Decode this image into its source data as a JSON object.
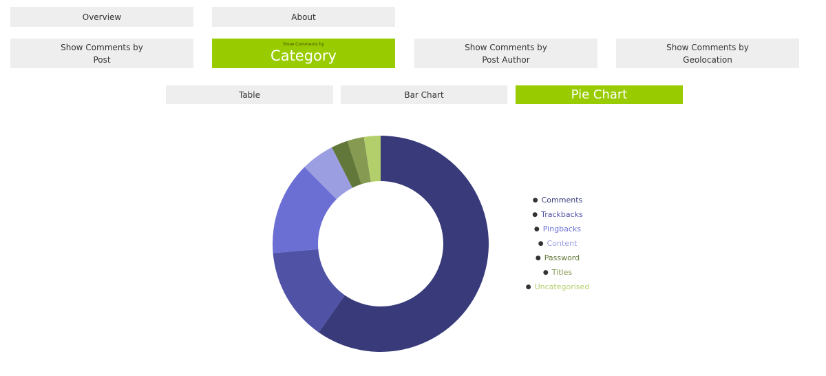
{
  "nav": {
    "overview": "Overview",
    "about": "About"
  },
  "views": {
    "post": {
      "line1": "Show Comments by",
      "line2": "Post"
    },
    "category": {
      "line1": "Show Comments by",
      "line2": "Category"
    },
    "author": {
      "line1": "Show Comments by",
      "line2": "Post Author"
    },
    "geo": {
      "line1": "Show Comments by",
      "line2": "Geolocation"
    }
  },
  "display": {
    "table": "Table",
    "bar": "Bar Chart",
    "pie": "Pie Chart"
  },
  "colors": {
    "active": "#99cc00",
    "inactive": "#eeeeee"
  },
  "chart_data": {
    "type": "pie",
    "donut": true,
    "categories": [
      "Comments",
      "Trackbacks",
      "Pingbacks",
      "Content",
      "Password",
      "Titles",
      "Uncategorised"
    ],
    "values": [
      60,
      14,
      14,
      5,
      2.5,
      2.5,
      2.5
    ],
    "colors": [
      "#383a7a",
      "#4f52a5",
      "#6b6fd4",
      "#9c9ee2",
      "#62773a",
      "#879a52",
      "#b3cf6b"
    ],
    "legend_position": "right"
  }
}
